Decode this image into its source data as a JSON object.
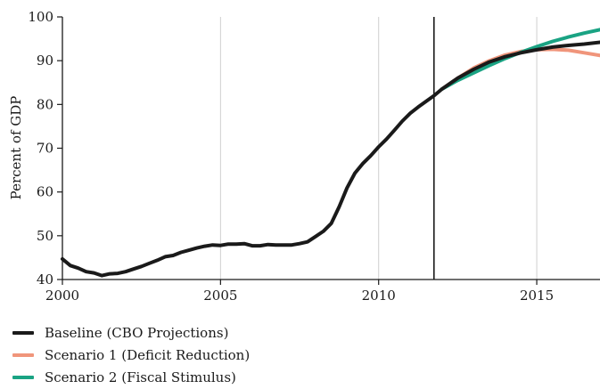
{
  "chart_data": {
    "type": "line",
    "title": "",
    "xlabel": "",
    "ylabel": "Percent of GDP",
    "xlim": [
      2000,
      2017
    ],
    "ylim": [
      40,
      100
    ],
    "x_ticks": [
      2000,
      2005,
      2010,
      2015
    ],
    "y_ticks": [
      40,
      50,
      60,
      70,
      80,
      90,
      100
    ],
    "grid": "vertical at x ticks",
    "reference_line_x": 2011.75,
    "legend_position": "bottom-left",
    "series": [
      {
        "name": "Baseline (CBO Projections)",
        "color": "#1a1a1a",
        "x": [
          2000.0,
          2000.25,
          2000.5,
          2000.75,
          2001.0,
          2001.25,
          2001.5,
          2001.75,
          2002.0,
          2002.25,
          2002.5,
          2002.75,
          2003.0,
          2003.25,
          2003.5,
          2003.75,
          2004.0,
          2004.25,
          2004.5,
          2004.75,
          2005.0,
          2005.25,
          2005.5,
          2005.75,
          2006.0,
          2006.25,
          2006.5,
          2006.75,
          2007.0,
          2007.25,
          2007.5,
          2007.75,
          2008.0,
          2008.25,
          2008.5,
          2008.75,
          2009.0,
          2009.25,
          2009.5,
          2009.75,
          2010.0,
          2010.25,
          2010.5,
          2010.75,
          2011.0,
          2011.25,
          2011.5,
          2011.75,
          2012.0,
          2012.5,
          2013.0,
          2013.5,
          2014.0,
          2014.5,
          2015.0,
          2015.5,
          2016.0,
          2016.5,
          2017.0
        ],
        "values": [
          44.7,
          43.2,
          42.6,
          41.8,
          41.5,
          40.9,
          41.3,
          41.4,
          41.8,
          42.4,
          43.0,
          43.7,
          44.4,
          45.2,
          45.5,
          46.2,
          46.7,
          47.2,
          47.6,
          47.9,
          47.8,
          48.1,
          48.1,
          48.2,
          47.7,
          47.7,
          48.0,
          47.9,
          47.9,
          47.9,
          48.2,
          48.6,
          49.8,
          51.0,
          52.8,
          56.6,
          60.9,
          64.3,
          66.5,
          68.3,
          70.3,
          72.1,
          74.1,
          76.2,
          78.0,
          79.4,
          80.7,
          82.0,
          83.5,
          86.0,
          88.0,
          89.7,
          90.9,
          91.8,
          92.5,
          93.1,
          93.5,
          93.8,
          94.2
        ]
      },
      {
        "name": "Scenario 1 (Deficit Reduction)",
        "color": "#f0957b",
        "x": [
          2012.0,
          2012.5,
          2013.0,
          2013.5,
          2014.0,
          2014.5,
          2015.0,
          2015.5,
          2016.0,
          2016.5,
          2017.0
        ],
        "values": [
          83.5,
          86.0,
          88.3,
          90.0,
          91.3,
          92.1,
          92.5,
          92.6,
          92.4,
          91.8,
          91.2
        ]
      },
      {
        "name": "Scenario 2 (Fiscal Stimulus)",
        "color": "#1aa383",
        "x": [
          2012.0,
          2012.5,
          2013.0,
          2013.5,
          2014.0,
          2014.5,
          2015.0,
          2015.5,
          2016.0,
          2016.5,
          2017.0
        ],
        "values": [
          83.5,
          85.5,
          87.2,
          88.9,
          90.5,
          91.9,
          93.2,
          94.4,
          95.4,
          96.3,
          97.1
        ]
      }
    ]
  }
}
